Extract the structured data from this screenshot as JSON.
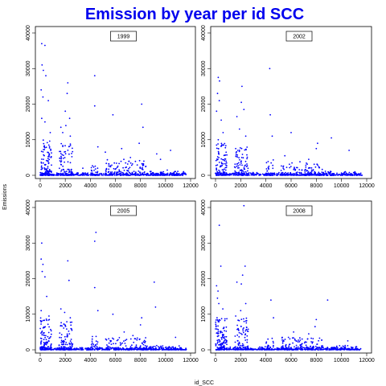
{
  "chart_data": {
    "type": "scatter",
    "title": "Emission by year per id SCC",
    "xlabel": "id_SCC",
    "ylabel": "Emissions",
    "xlim": [
      0,
      12000
    ],
    "ylim": [
      0,
      40000
    ],
    "x_ticks": [
      0,
      2000,
      4000,
      6000,
      8000,
      10000,
      12000
    ],
    "y_ticks": [
      0,
      10000,
      20000,
      30000,
      40000
    ],
    "point_color": "#0000ff",
    "grid": false,
    "panels": [
      {
        "name": "1999",
        "legend_position": "top-center",
        "outliers": [
          [
            120,
            37000
          ],
          [
            380,
            36500
          ],
          [
            150,
            31000
          ],
          [
            250,
            29500
          ],
          [
            450,
            28000
          ],
          [
            80,
            24000
          ],
          [
            220,
            22000
          ],
          [
            650,
            21000
          ],
          [
            120,
            16000
          ],
          [
            380,
            15000
          ],
          [
            800,
            12000
          ],
          [
            1650,
            13500
          ],
          [
            1800,
            12000
          ],
          [
            2000,
            18000
          ],
          [
            2200,
            26000
          ],
          [
            2150,
            23000
          ],
          [
            2350,
            16000
          ],
          [
            2050,
            14000
          ],
          [
            2400,
            11000
          ],
          [
            4350,
            28000
          ],
          [
            4350,
            19500
          ],
          [
            5800,
            17000
          ],
          [
            4600,
            8000
          ],
          [
            8100,
            20000
          ],
          [
            8200,
            13500
          ],
          [
            7900,
            9000
          ],
          [
            9300,
            6000
          ],
          [
            7200,
            5000
          ],
          [
            5200,
            6500
          ],
          [
            6500,
            7500
          ],
          [
            10400,
            7000
          ],
          [
            3400,
            2000
          ],
          [
            9600,
            4500
          ]
        ],
        "clusters": [
          {
            "x": [
              0,
              900
            ],
            "ymax": 10000,
            "n": 120
          },
          {
            "x": [
              1500,
              2600
            ],
            "ymax": 9000,
            "n": 90
          },
          {
            "x": [
              4000,
              4600
            ],
            "ymax": 3000,
            "n": 25
          },
          {
            "x": [
              5200,
              8500
            ],
            "ymax": 4500,
            "n": 120
          },
          {
            "x": [
              8500,
              11500
            ],
            "ymax": 1500,
            "n": 50
          }
        ]
      },
      {
        "name": "2002",
        "legend_position": "top-center",
        "outliers": [
          [
            220,
            27500
          ],
          [
            320,
            26500
          ],
          [
            160,
            23000
          ],
          [
            300,
            21000
          ],
          [
            80,
            18000
          ],
          [
            450,
            15500
          ],
          [
            600,
            12000
          ],
          [
            220,
            10000
          ],
          [
            2100,
            25000
          ],
          [
            2050,
            20500
          ],
          [
            2250,
            18500
          ],
          [
            1700,
            16500
          ],
          [
            1900,
            13000
          ],
          [
            2400,
            11000
          ],
          [
            4300,
            30000
          ],
          [
            4350,
            17000
          ],
          [
            4500,
            11000
          ],
          [
            6000,
            12000
          ],
          [
            8100,
            9000
          ],
          [
            9200,
            10500
          ],
          [
            8000,
            7500
          ],
          [
            10600,
            7000
          ],
          [
            7400,
            4500
          ],
          [
            5500,
            5500
          ],
          [
            6700,
            3800
          ]
        ],
        "clusters": [
          {
            "x": [
              0,
              900
            ],
            "ymax": 9000,
            "n": 110
          },
          {
            "x": [
              1500,
              2600
            ],
            "ymax": 8000,
            "n": 90
          },
          {
            "x": [
              4000,
              4600
            ],
            "ymax": 5000,
            "n": 25
          },
          {
            "x": [
              5200,
              8500
            ],
            "ymax": 3500,
            "n": 110
          },
          {
            "x": [
              8500,
              11500
            ],
            "ymax": 1200,
            "n": 50
          }
        ]
      },
      {
        "name": "2005",
        "legend_position": "top-center",
        "outliers": [
          [
            120,
            30000
          ],
          [
            80,
            25500
          ],
          [
            220,
            24000
          ],
          [
            160,
            22000
          ],
          [
            380,
            20500
          ],
          [
            520,
            15000
          ],
          [
            80,
            11000
          ],
          [
            700,
            9500
          ],
          [
            2200,
            25000
          ],
          [
            2300,
            19500
          ],
          [
            1650,
            11500
          ],
          [
            1950,
            10500
          ],
          [
            2400,
            9000
          ],
          [
            4450,
            33000
          ],
          [
            4350,
            30500
          ],
          [
            4350,
            17500
          ],
          [
            4600,
            11000
          ],
          [
            5800,
            10000
          ],
          [
            9100,
            19000
          ],
          [
            9200,
            12000
          ],
          [
            8100,
            9000
          ],
          [
            8000,
            7000
          ],
          [
            10800,
            3500
          ],
          [
            6700,
            5000
          ],
          [
            7400,
            4000
          ]
        ],
        "clusters": [
          {
            "x": [
              0,
              900
            ],
            "ymax": 9000,
            "n": 110
          },
          {
            "x": [
              1500,
              2600
            ],
            "ymax": 8000,
            "n": 90
          },
          {
            "x": [
              4000,
              4600
            ],
            "ymax": 4000,
            "n": 25
          },
          {
            "x": [
              5200,
              8500
            ],
            "ymax": 3500,
            "n": 110
          },
          {
            "x": [
              8500,
              11500
            ],
            "ymax": 1200,
            "n": 50
          }
        ]
      },
      {
        "name": "2008",
        "legend_position": "top-center",
        "outliers": [
          [
            300,
            35000
          ],
          [
            420,
            23500
          ],
          [
            80,
            18000
          ],
          [
            200,
            16500
          ],
          [
            150,
            14500
          ],
          [
            260,
            13000
          ],
          [
            580,
            11500
          ],
          [
            120,
            9000
          ],
          [
            2250,
            40500
          ],
          [
            2350,
            23500
          ],
          [
            2150,
            21000
          ],
          [
            2050,
            18500
          ],
          [
            1700,
            19000
          ],
          [
            2400,
            13000
          ],
          [
            2000,
            11000
          ],
          [
            1600,
            9500
          ],
          [
            4400,
            14000
          ],
          [
            4600,
            9000
          ],
          [
            8000,
            8500
          ],
          [
            8900,
            14000
          ],
          [
            7900,
            6500
          ],
          [
            6200,
            5000
          ],
          [
            7400,
            4500
          ],
          [
            5300,
            3500
          ],
          [
            10500,
            2500
          ]
        ],
        "clusters": [
          {
            "x": [
              0,
              900
            ],
            "ymax": 9000,
            "n": 110
          },
          {
            "x": [
              1500,
              2600
            ],
            "ymax": 9000,
            "n": 90
          },
          {
            "x": [
              4000,
              4600
            ],
            "ymax": 4000,
            "n": 25
          },
          {
            "x": [
              5200,
              8500
            ],
            "ymax": 3500,
            "n": 110
          },
          {
            "x": [
              8500,
              11500
            ],
            "ymax": 1200,
            "n": 50
          }
        ]
      }
    ]
  }
}
